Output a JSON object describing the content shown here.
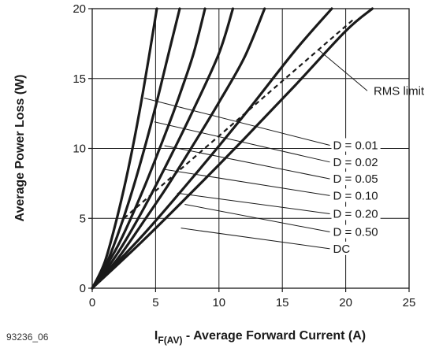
{
  "chart_data": {
    "type": "line",
    "figure_id": "93236_06",
    "xlabel_main": "I",
    "xlabel_sub": "F(AV)",
    "xlabel_rest": " - Average Forward Current (A)",
    "ylabel": "Average Power Loss (W)",
    "xlim": [
      0,
      25
    ],
    "ylim": [
      0,
      20
    ],
    "xticks": [
      0,
      5,
      10,
      15,
      20,
      25
    ],
    "yticks": [
      0,
      5,
      10,
      15,
      20
    ],
    "grid": true,
    "colors": {
      "curve": "#1a1a1a",
      "grid": "#1a1a1a"
    },
    "series": [
      {
        "name": "D = 0.01",
        "x": [
          0,
          1,
          2,
          3,
          4,
          5.1
        ],
        "y": [
          0,
          1.9,
          5.2,
          9.2,
          14.0,
          20
        ]
      },
      {
        "name": "D = 0.02",
        "x": [
          0,
          1,
          2,
          3,
          4,
          5,
          6,
          6.9
        ],
        "y": [
          0,
          1.5,
          3.8,
          6.5,
          9.6,
          13.0,
          16.7,
          20
        ]
      },
      {
        "name": "D = 0.05",
        "x": [
          0,
          2,
          4,
          6,
          7,
          8,
          8.9
        ],
        "y": [
          0,
          3.0,
          7.0,
          11.6,
          14.1,
          16.8,
          20
        ]
      },
      {
        "name": "D = 0.10",
        "x": [
          0,
          2,
          4,
          6,
          8,
          10,
          11.1
        ],
        "y": [
          0,
          2.5,
          5.6,
          9.1,
          12.8,
          16.8,
          20
        ]
      },
      {
        "name": "D = 0.20",
        "x": [
          0,
          2,
          4,
          6,
          8,
          10,
          12,
          13.6
        ],
        "y": [
          0,
          2.1,
          4.7,
          7.4,
          10.3,
          13.3,
          16.5,
          20
        ]
      },
      {
        "name": "D = 0.50",
        "x": [
          0,
          4,
          8,
          12,
          16,
          18.9
        ],
        "y": [
          0,
          3.8,
          8.0,
          12.4,
          17.0,
          20
        ]
      },
      {
        "name": "DC",
        "x": [
          0,
          4,
          8,
          12,
          16,
          20,
          22.1
        ],
        "y": [
          0,
          3.4,
          7.0,
          10.7,
          14.5,
          18.4,
          20
        ]
      }
    ],
    "rms_limit": {
      "name": "RMS limit",
      "x": [
        2.5,
        20.7
      ],
      "y": [
        5.0,
        19.3
      ]
    },
    "annotations": [
      {
        "text": "RMS limit",
        "target_x": 17.8,
        "target_y": 17.1,
        "label_x": 22.2,
        "label_y": 13.9
      },
      {
        "text": "D = 0.01",
        "target_x": 4.1,
        "target_y": 13.6,
        "label_x": 19.0,
        "label_y": 10.0
      },
      {
        "text": "D = 0.02",
        "target_x": 4.9,
        "target_y": 11.9,
        "label_x": 19.0,
        "label_y": 8.8
      },
      {
        "text": "D = 0.05",
        "target_x": 5.7,
        "target_y": 10.2,
        "label_x": 19.0,
        "label_y": 7.6
      },
      {
        "text": "D = 0.10",
        "target_x": 5.7,
        "target_y": 8.5,
        "label_x": 19.0,
        "label_y": 6.4
      },
      {
        "text": "D = 0.20",
        "target_x": 6.7,
        "target_y": 6.8,
        "label_x": 19.0,
        "label_y": 5.1
      },
      {
        "text": "D = 0.50",
        "target_x": 7.3,
        "target_y": 6.0,
        "label_x": 19.0,
        "label_y": 3.8
      },
      {
        "text": "DC",
        "target_x": 7.0,
        "target_y": 4.3,
        "label_x": 19.0,
        "label_y": 2.6
      }
    ]
  }
}
